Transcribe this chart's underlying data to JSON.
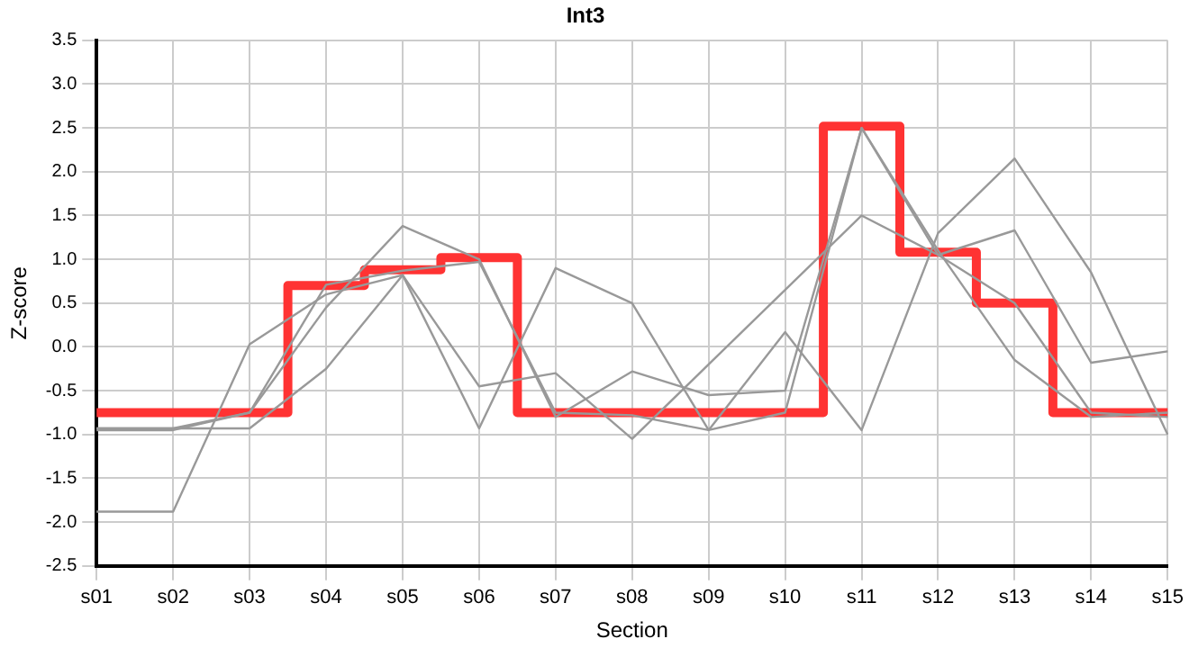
{
  "chart_data": {
    "type": "line",
    "title": "Int3",
    "xlabel": "Section",
    "ylabel": "Z-score",
    "categories": [
      "s01",
      "s02",
      "s03",
      "s04",
      "s05",
      "s06",
      "s07",
      "s08",
      "s09",
      "s10",
      "s11",
      "s12",
      "s13",
      "s14",
      "s15"
    ],
    "series": [
      {
        "color": "#999999",
        "values": [
          -1.88,
          -1.88,
          0.03,
          0.6,
          0.82,
          -0.93,
          0.9,
          0.5,
          -0.95,
          0.17,
          -0.95,
          1.3,
          2.15,
          0.85,
          -1.0
        ]
      },
      {
        "color": "#999999",
        "values": [
          -0.93,
          -0.93,
          -0.93,
          -0.25,
          0.82,
          -0.45,
          -0.3,
          -1.05,
          -0.2,
          0.65,
          1.5,
          1.05,
          1.33,
          -0.18,
          -0.05
        ]
      },
      {
        "color": "#999999",
        "values": [
          -0.95,
          -0.95,
          -0.75,
          0.45,
          1.38,
          1.0,
          -0.8,
          -0.28,
          -0.55,
          -0.5,
          2.5,
          1.05,
          0.5,
          -0.75,
          -0.8
        ]
      },
      {
        "color": "#999999",
        "values": [
          -0.93,
          -0.93,
          -0.75,
          0.71,
          0.87,
          0.97,
          -0.75,
          -0.78,
          -0.95,
          -0.75,
          2.5,
          1.1,
          -0.15,
          -0.8,
          -0.75
        ]
      },
      {
        "type": "step",
        "color": "#ff3333",
        "values": [
          -0.75,
          -0.75,
          -0.75,
          0.7,
          0.88,
          1.02,
          -0.75,
          -0.75,
          -0.75,
          -0.75,
          2.52,
          1.08,
          0.5,
          -0.75,
          -0.75
        ]
      }
    ],
    "ylim": [
      -2.5,
      3.5
    ],
    "yticks": [
      -2.5,
      {
        "value": -2,
        "label": "-2.0"
      },
      -1.5,
      {
        "value": -1,
        "label": "-1.0"
      },
      -0.5,
      {
        "value": 0,
        "label": "0.0"
      },
      0.5,
      {
        "value": 1,
        "label": "1.0"
      },
      1.5,
      {
        "value": 2,
        "label": "2.0"
      },
      2.5,
      {
        "value": 3,
        "label": "3.0"
      },
      3.5
    ],
    "grid": true,
    "legend": false,
    "marker": "none",
    "line_style": "solid"
  }
}
